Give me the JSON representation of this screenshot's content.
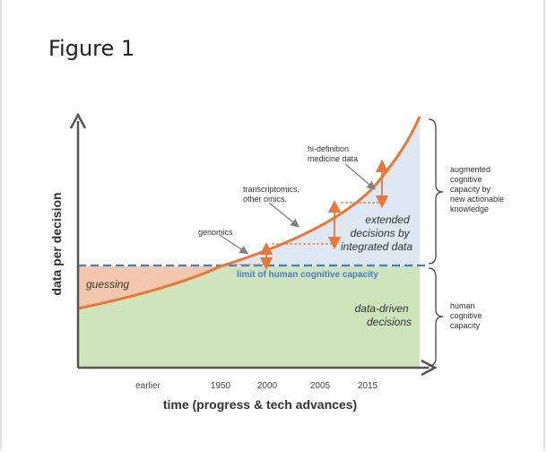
{
  "figure_title": "Figure 1",
  "axes": {
    "y_label": "data per decision",
    "x_label": "time (progress & tech advances)",
    "x_ticks": [
      "earlier",
      "1950",
      "2000",
      "2005",
      "2015"
    ]
  },
  "regions": {
    "guessing": "guessing",
    "data_driven": [
      "data-driven",
      "decisions"
    ],
    "extended": [
      "extended",
      "decisions by",
      "integrated data"
    ],
    "limit_line": "limit of human cognitive capacity"
  },
  "annotations": {
    "genomics": "genomics",
    "transcriptomics": [
      "transcriptomics,",
      "other omics."
    ],
    "hi_definition": [
      "hi-definition",
      "medicine data"
    ]
  },
  "brackets": {
    "augmented": [
      "augmented",
      "cognitive",
      "capacity by",
      "new actionable",
      "knowledge"
    ],
    "human": [
      "human",
      "cognitive",
      "capacity"
    ]
  },
  "colors": {
    "curve": "#e8773a",
    "guessing_fill": "#f3c7ad",
    "data_driven_fill": "#cfe3bc",
    "extended_fill": "#dde8f3",
    "limit_line": "#4a7cc4",
    "axis": "#555555"
  }
}
